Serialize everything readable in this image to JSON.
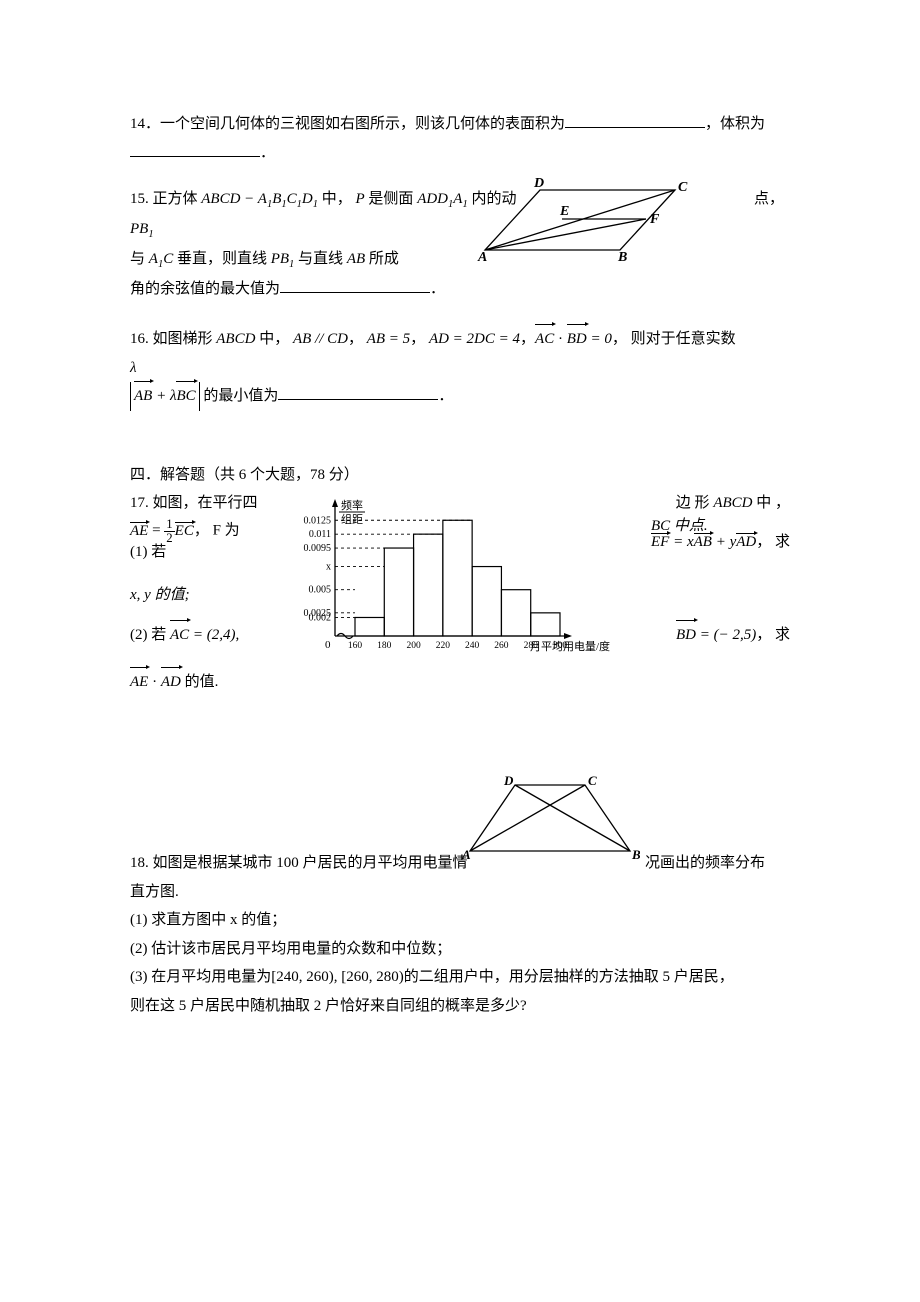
{
  "q14": {
    "num": "14．",
    "text_a": "一个空间几何体的三视图如右图所示，则该几何体的表面积为",
    "text_b": "，体积为",
    "text_c": "．",
    "blank1_w": 140,
    "blank2_w": 130
  },
  "q15": {
    "num": "15.",
    "line1_a": " 正方体 ",
    "cube": "ABCD − A₁B₁C₁D₁",
    "line1_b": " 中， ",
    "p_is": "P 是侧面 ADD₁A₁ 内的动",
    "right_a": "点，",
    "right_b": "PB₁",
    "line2_a": "与 ",
    "a1c": "A₁C",
    "line2_b": " 垂直，则直线 ",
    "pb1": "PB₁",
    "line2_c": " 与直线 ",
    "ab": "AB",
    "line2_d": " 所成",
    "line3_a": "角的余弦值的最大值为",
    "blank_w": 150,
    "dot": "．",
    "fig": {
      "A": "A",
      "B": "B",
      "C": "C",
      "D": "D",
      "E": "E",
      "F": "F",
      "stroke": "#000000"
    }
  },
  "q16": {
    "num": "16.",
    "text_a": " 如图梯形 ",
    "abcd": "ABCD",
    "text_b": " 中， ",
    "par": "AB // CD",
    "c1": "， ",
    "e1": "AB = 5",
    "c2": "， ",
    "e2": "AD = 2DC = 4",
    "c3": "，",
    "vec_ac": "AC",
    "dot": " · ",
    "vec_bd": "BD",
    "eq0": " = 0",
    "text_c": "，  则对于任意实数",
    "lam": "λ",
    "abs_l": "AB",
    "plus": " + λ",
    "abs_r": "BC",
    "text_d": " 的最小值为",
    "blank_w": 160,
    "period": "．"
  },
  "section4": "四．解答题（共 6 个大题，78 分）",
  "q17": {
    "num": "17.",
    "l1_left": " 如图，在平行四",
    "l1_right_a": "边 形  ",
    "l1_right_b": "ABCD",
    "l1_right_c": " 中 ，",
    "ae": "AE",
    "frac_n": "1",
    "frac_d": "2",
    "ec": "EC",
    "f_wei": "，     F 为",
    "bc_mid": "BC 中点.",
    "p1": "(1) 若",
    "ef": "EF",
    "eq": " = x",
    "ab": "AB",
    "plus": " + y",
    "ad": "AD",
    "p1_end": "，   求",
    "xy": "x, y 的值;",
    "p2": "(2) 若   ",
    "ac": "AC",
    "eq2": " = (2,4),",
    "bd": "BD",
    "eq3": " = (− 2,5)",
    "p2_end": "，          求",
    "ae2": "AE",
    "dot": " · ",
    "ad2": "AD",
    "p3_end": " 的值.",
    "hist": {
      "ylabel_top": "频率",
      "ylabel_bot": "组距",
      "yticks": [
        "0.0125",
        "0.011",
        "0.0095",
        "x",
        "0.005",
        "0.0025",
        "0.002"
      ],
      "yvals": [
        0.0125,
        0.011,
        0.0095,
        0.0075,
        0.005,
        0.0025,
        0.002
      ],
      "xticks": [
        "160",
        "180",
        "200",
        "220",
        "240",
        "260",
        "280",
        "300"
      ],
      "xlabel": "月平均用电量/度",
      "bars": [
        0.002,
        0.0095,
        0.011,
        0.0125,
        0.0075,
        0.005,
        0.0025
      ],
      "axis_color": "#000000",
      "dash_color": "#000000",
      "bg": "#ffffff"
    }
  },
  "q18": {
    "num": "18.",
    "text_a": " 如图是根据某城市 100 户居民的月平均用电量情",
    "text_b": "况画出的频率分布",
    "text_c": "直方图.",
    "p1": "(1) 求直方图中 x 的值；",
    "p2": "(2) 估计该市居民月平均用电量的众数和中位数；",
    "p3": "(3) 在月平均用电量为[240, 260), [260, 280)的二组用户中，用分层抽样的方法抽取 5 户居民，",
    "p3b": "则在这 5 户居民中随机抽取 2 户恰好来自同组的概率是多少?",
    "fig": {
      "A": "A",
      "B": "B",
      "C": "C",
      "D": "D",
      "stroke": "#000000"
    }
  }
}
